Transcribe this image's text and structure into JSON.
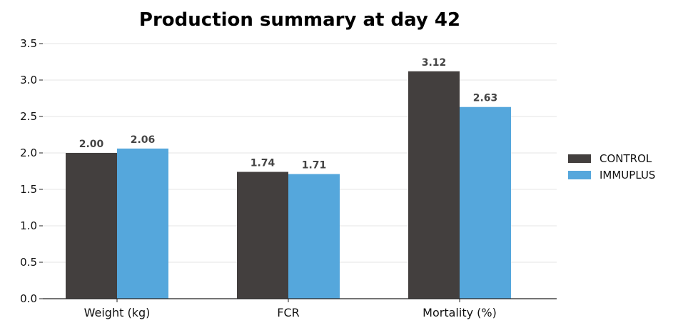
{
  "chart_data": {
    "type": "bar",
    "title": "Production summary at day 42",
    "xlabel": "",
    "ylabel": "",
    "categories": [
      "Weight (kg)",
      "FCR",
      "Mortality (%)"
    ],
    "series": [
      {
        "name": "CONTROL",
        "values": [
          2.0,
          1.74,
          3.12
        ],
        "labels": [
          "2.00",
          "1.74",
          "3.12"
        ],
        "color": "#433f3e"
      },
      {
        "name": "IMMUPLUS",
        "values": [
          2.06,
          1.71,
          2.63
        ],
        "labels": [
          "2.06",
          "1.71",
          "2.63"
        ],
        "color": "#55a7dc"
      }
    ],
    "ylim": [
      0,
      3.5
    ],
    "yticks": [
      "0.0",
      "0.5",
      "1.0",
      "1.5",
      "2.0",
      "2.5",
      "3.0",
      "3.5"
    ],
    "grid": "horizontal",
    "legend": "right"
  }
}
